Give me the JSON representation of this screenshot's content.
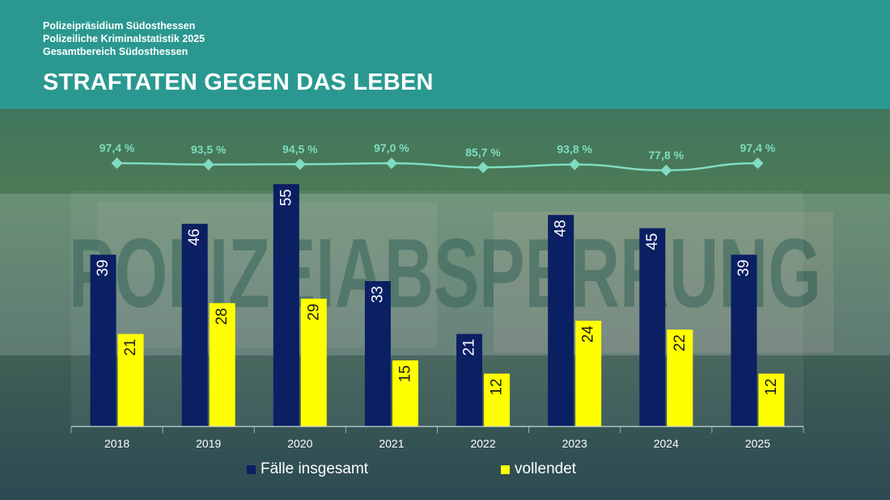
{
  "header": {
    "line1": "Polizeipräsidium Südosthessen",
    "line2": "Polizeiliche Kriminalstatistik 2025",
    "line3": "Gesamtbereich Südosthessen",
    "title": "STRAFTATEN GEGEN DAS LEBEN"
  },
  "background": {
    "tape_text": "POLIZEIABSPERRUNG"
  },
  "colors": {
    "header_bg": "#2a9890",
    "total_bar": "#0b1f63",
    "completed_bar": "#ffff00",
    "rate_line": "#7fdcc0"
  },
  "chart_data": {
    "type": "bar",
    "categories": [
      "2018",
      "2019",
      "2020",
      "2021",
      "2022",
      "2023",
      "2024",
      "2025"
    ],
    "series": [
      {
        "name": "Fälle insgesamt",
        "values": [
          39,
          46,
          55,
          33,
          21,
          48,
          45,
          39
        ]
      },
      {
        "name": "vollendet",
        "values": [
          21,
          28,
          29,
          15,
          12,
          24,
          22,
          12
        ]
      }
    ],
    "rate_line": {
      "values": [
        97.4,
        93.5,
        94.5,
        97.0,
        85.7,
        93.8,
        77.8,
        97.4
      ],
      "labels": [
        "97,4 %",
        "93,5 %",
        "94,5 %",
        "97,0 %",
        "85,7 %",
        "93,8 %",
        "77,8 %",
        "97,4 %"
      ]
    },
    "legend_position": "bottom",
    "ylim": [
      0,
      55
    ]
  }
}
